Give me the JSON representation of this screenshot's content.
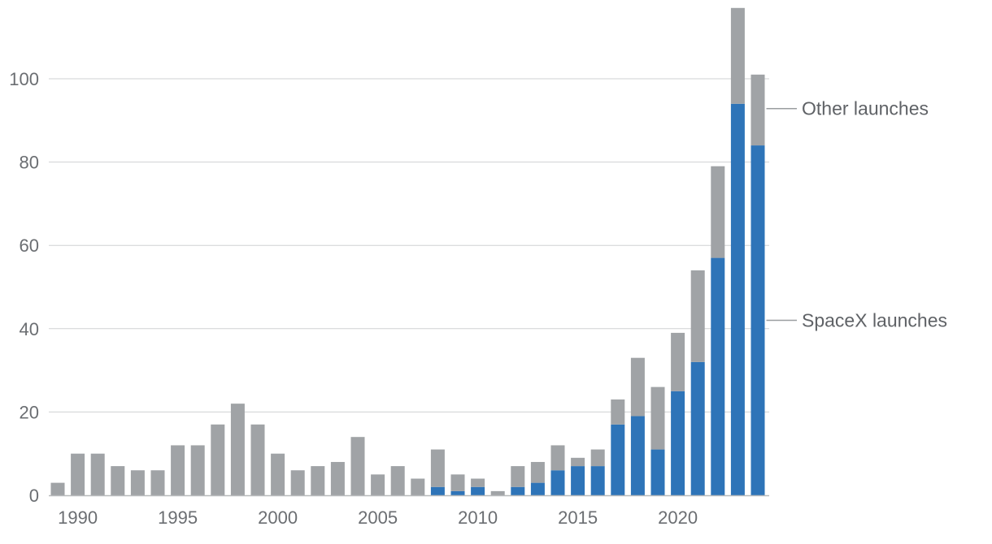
{
  "chart_data": {
    "type": "bar",
    "stacked": true,
    "title": "",
    "xlabel": "",
    "ylabel": "",
    "ylim": [
      0,
      117
    ],
    "grid": true,
    "legend_placement": "right, inline labels",
    "categories": [
      1989,
      1990,
      1991,
      1992,
      1993,
      1994,
      1995,
      1996,
      1997,
      1998,
      1999,
      2000,
      2001,
      2002,
      2003,
      2004,
      2005,
      2006,
      2007,
      2008,
      2009,
      2010,
      2011,
      2012,
      2013,
      2014,
      2015,
      2016,
      2017,
      2018,
      2019,
      2020,
      2021,
      2022,
      2023,
      2024
    ],
    "x_tick_labels": [
      "1990",
      "1995",
      "2000",
      "2005",
      "2010",
      "2015",
      "2020"
    ],
    "y_tick_labels": [
      "0",
      "20",
      "40",
      "60",
      "80",
      "100"
    ],
    "y_ticks": [
      0,
      20,
      40,
      60,
      80,
      100
    ],
    "series": [
      {
        "name": "SpaceX launches",
        "color": "#2e74b8",
        "values": [
          0,
          0,
          0,
          0,
          0,
          0,
          0,
          0,
          0,
          0,
          0,
          0,
          0,
          0,
          0,
          0,
          0,
          0,
          0,
          2,
          1,
          2,
          0,
          2,
          3,
          6,
          7,
          7,
          17,
          19,
          11,
          25,
          32,
          57,
          94,
          84
        ]
      },
      {
        "name": "Other launches",
        "color": "#a0a3a6",
        "values": [
          3,
          10,
          10,
          7,
          6,
          6,
          12,
          12,
          17,
          22,
          17,
          10,
          6,
          7,
          8,
          14,
          5,
          7,
          4,
          9,
          4,
          2,
          1,
          5,
          5,
          6,
          2,
          4,
          6,
          14,
          15,
          14,
          22,
          22,
          23,
          17
        ]
      }
    ]
  }
}
